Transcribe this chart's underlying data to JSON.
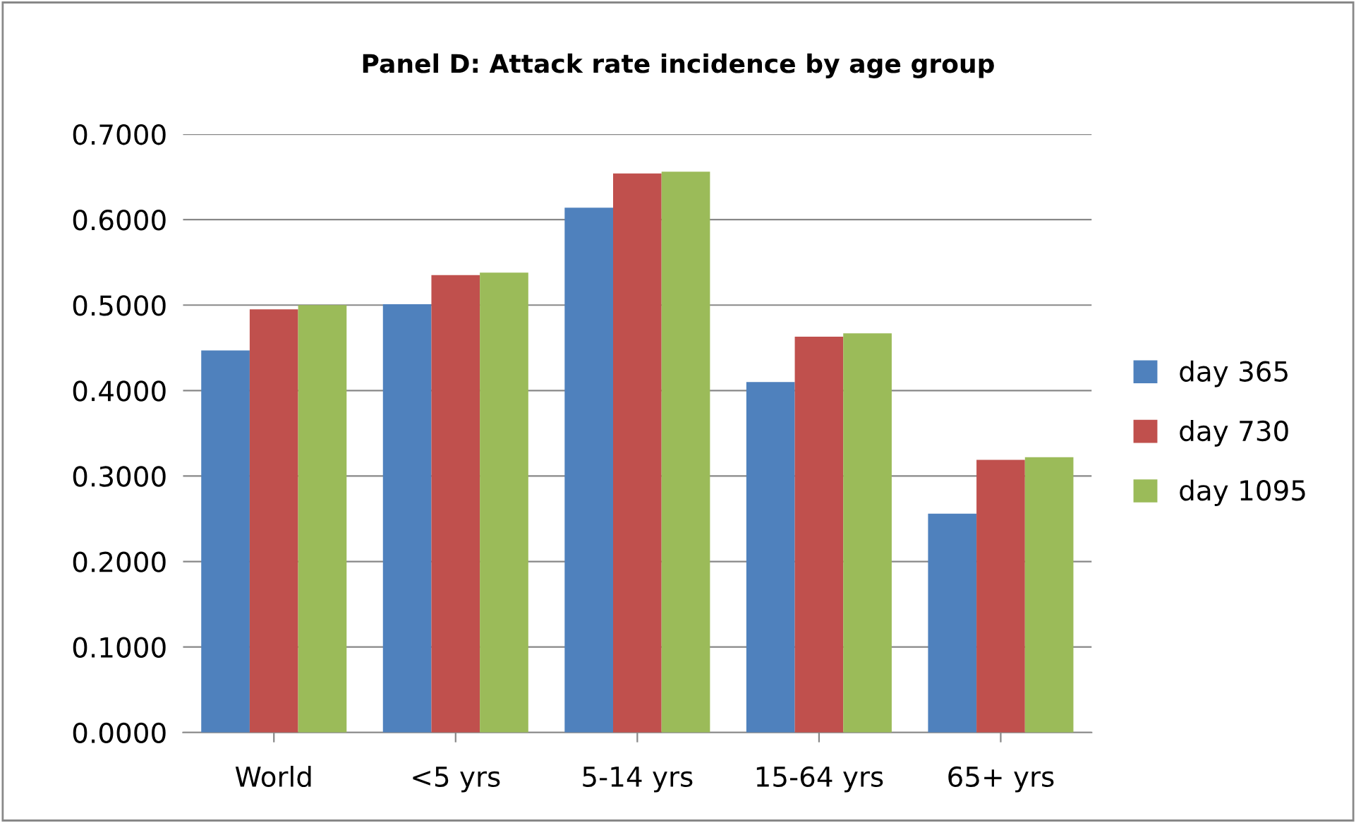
{
  "chart_data": {
    "type": "bar",
    "title": "Panel D: Attack rate incidence by age group",
    "categories": [
      "World",
      "<5 yrs",
      "5-14 yrs",
      "15-64 yrs",
      "65+ yrs"
    ],
    "series": [
      {
        "name": "day 365",
        "color": "#4f81bd",
        "values": [
          0.447,
          0.501,
          0.614,
          0.41,
          0.256
        ]
      },
      {
        "name": "day 730",
        "color": "#c0504d",
        "values": [
          0.495,
          0.535,
          0.654,
          0.463,
          0.319
        ]
      },
      {
        "name": "day 1095",
        "color": "#9bbb59",
        "values": [
          0.5,
          0.538,
          0.656,
          0.467,
          0.322
        ]
      }
    ],
    "ylim": [
      0,
      0.7
    ],
    "yticks": [
      {
        "value": 0,
        "label": "0.0000"
      },
      {
        "value": 0.1,
        "label": "0.1000"
      },
      {
        "value": 0.2,
        "label": "0.2000"
      },
      {
        "value": 0.3,
        "label": "0.3000"
      },
      {
        "value": 0.4,
        "label": "0.4000"
      },
      {
        "value": 0.5,
        "label": "0.5000"
      },
      {
        "value": 0.6,
        "label": "0.6000"
      },
      {
        "value": 0.7,
        "label": "0.7000"
      }
    ],
    "grid": "y",
    "legend": "right"
  }
}
